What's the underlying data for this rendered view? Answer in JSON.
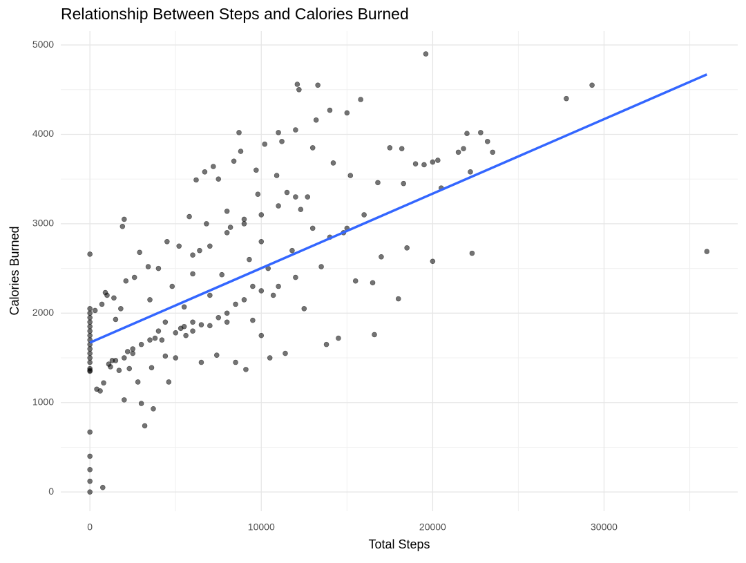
{
  "chart_data": {
    "type": "scatter",
    "title": "Relationship Between Steps and Calories Burned",
    "x_label": "Total Steps",
    "y_label": "Calories Burned",
    "xlim": [
      -1700,
      37800
    ],
    "ylim": [
      -215,
      5155
    ],
    "xticks": [
      0,
      10000,
      20000,
      30000
    ],
    "yticks": [
      0,
      1000,
      2000,
      3000,
      4000,
      5000
    ],
    "xminor": [
      5000,
      15000,
      25000,
      35000
    ],
    "yminor": [
      500,
      1500,
      2500,
      3500,
      4500
    ],
    "grid": true,
    "series": [
      {
        "color": "#000000",
        "opacity": 0.55,
        "x": [
          0,
          0,
          0,
          0,
          0,
          0,
          0,
          0,
          0,
          0,
          0,
          0,
          0,
          0,
          0,
          0,
          0,
          0,
          0,
          0,
          0,
          0,
          750,
          300,
          400,
          600,
          700,
          800,
          900,
          1000,
          1100,
          1200,
          1300,
          1400,
          1500,
          1700,
          1800,
          1900,
          2000,
          2000,
          2100,
          2200,
          2300,
          2500,
          2600,
          2800,
          2900,
          3000,
          3200,
          3400,
          3500,
          3600,
          3700,
          3800,
          4000,
          4200,
          4400,
          4400,
          4500,
          4600,
          4800,
          5000,
          5200,
          5300,
          5500,
          5600,
          5800,
          6000,
          6000,
          6200,
          6400,
          6500,
          6700,
          6800,
          7000,
          7000,
          7200,
          7400,
          7500,
          7700,
          8000,
          8000,
          8200,
          8400,
          8500,
          8700,
          8800,
          9000,
          9000,
          9100,
          9300,
          9500,
          9700,
          9800,
          10000,
          10000,
          10200,
          10400,
          10500,
          10700,
          10900,
          11000,
          11200,
          11400,
          11500,
          11800,
          12000,
          12100,
          12200,
          12300,
          12500,
          12700,
          13000,
          13200,
          13300,
          13500,
          13800,
          14000,
          14200,
          14500,
          14800,
          15000,
          15200,
          15500,
          15800,
          16000,
          16500,
          16600,
          16800,
          17000,
          17500,
          18000,
          18200,
          18300,
          18500,
          19000,
          19500,
          19600,
          20000,
          20000,
          20300,
          20500,
          21500,
          21800,
          22000,
          22200,
          22300,
          22800,
          23200,
          23500,
          27800,
          29300,
          36000,
          5000,
          5500,
          6000,
          6500,
          7500,
          8000,
          8500,
          9500,
          10000,
          11000,
          12000,
          6000,
          7000,
          8000,
          9000,
          10000,
          11000,
          12000,
          13000,
          14000,
          15000,
          3000,
          3500,
          4000,
          2000,
          2500,
          1500
        ],
        "values": [
          0,
          120,
          250,
          400,
          670,
          1350,
          1380,
          1450,
          1500,
          1550,
          1600,
          1650,
          1700,
          1750,
          1800,
          1850,
          1900,
          1950,
          2000,
          2050,
          2660,
          1360,
          50,
          2030,
          1150,
          1130,
          2100,
          1220,
          2230,
          2200,
          1430,
          1400,
          1470,
          2170,
          1930,
          1360,
          2050,
          2970,
          3050,
          1030,
          2360,
          1570,
          1380,
          1600,
          2400,
          1230,
          2680,
          990,
          740,
          2520,
          2150,
          1390,
          930,
          1720,
          2500,
          1700,
          1900,
          1520,
          2800,
          1230,
          2300,
          1500,
          2750,
          1830,
          2070,
          1750,
          3080,
          2440,
          1900,
          3490,
          2700,
          1450,
          3580,
          3000,
          1860,
          2200,
          3640,
          1530,
          3500,
          2430,
          3140,
          1900,
          2960,
          3700,
          1450,
          4020,
          3810,
          3000,
          2150,
          1370,
          2600,
          1920,
          3600,
          3330,
          2800,
          1750,
          3890,
          2500,
          1500,
          2200,
          3540,
          4020,
          3920,
          1550,
          3350,
          2700,
          4050,
          4560,
          4500,
          3160,
          2050,
          3300,
          3850,
          4160,
          4550,
          2520,
          1650,
          4270,
          3680,
          1720,
          2900,
          4240,
          3540,
          2360,
          4390,
          3100,
          2340,
          1760,
          3460,
          2630,
          3850,
          2160,
          3840,
          3450,
          2730,
          3670,
          3660,
          4900,
          2580,
          3690,
          3710,
          3400,
          3800,
          3840,
          4010,
          3580,
          2670,
          4020,
          3920,
          3800,
          4400,
          4550,
          2690,
          1780,
          1850,
          1800,
          1870,
          1950,
          2000,
          2100,
          2300,
          2250,
          2300,
          2400,
          2650,
          2750,
          2900,
          3050,
          3100,
          3200,
          3300,
          2950,
          2850,
          2950,
          1650,
          1700,
          1800,
          1500,
          1550,
          1470
        ]
      }
    ],
    "trend": {
      "color": "#3366ff",
      "x": [
        0,
        36000
      ],
      "values": [
        1670,
        4670
      ]
    }
  }
}
